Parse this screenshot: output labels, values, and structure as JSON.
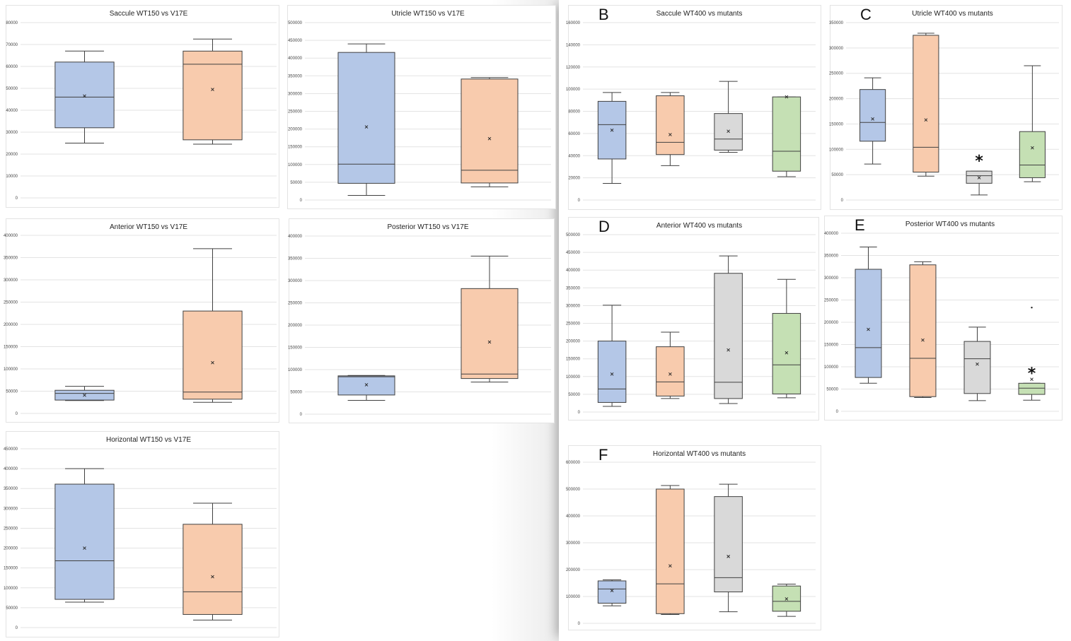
{
  "colors": {
    "wt": "#b4c7e7",
    "v17e": "#f8cbad",
    "mutant3": "#d9d9d9",
    "mutant4": "#c5e0b4",
    "stroke": "#404040"
  },
  "chart_data": [
    {
      "id": "saccule-150",
      "type": "box",
      "title": "Saccule WT150 vs V17E",
      "letter": "",
      "ylim": [
        0,
        80000
      ],
      "yticks": [
        0,
        10000,
        20000,
        30000,
        40000,
        50000,
        60000,
        70000,
        80000
      ],
      "boxes": [
        {
          "min": 25000,
          "q1": 32000,
          "median": 46000,
          "q3": 62000,
          "max": 67000,
          "mean": 46500
        },
        {
          "min": 24500,
          "q1": 26500,
          "median": 61000,
          "q3": 67000,
          "max": 72500,
          "mean": 49500
        }
      ]
    },
    {
      "id": "utricle-150",
      "type": "box",
      "title": "Utricle WT150 vs V17E",
      "letter": "",
      "ylim": [
        0,
        500000
      ],
      "yticks": [
        0,
        50000,
        100000,
        150000,
        200000,
        250000,
        300000,
        350000,
        400000,
        450000,
        500000
      ],
      "boxes": [
        {
          "min": 13000,
          "q1": 47000,
          "median": 101000,
          "q3": 416000,
          "max": 440000,
          "mean": 206000
        },
        {
          "min": 37000,
          "q1": 48000,
          "median": 84000,
          "q3": 341000,
          "max": 345000,
          "mean": 173000
        }
      ]
    },
    {
      "id": "anterior-150",
      "type": "box",
      "title": "Anterior WT150 vs V17E",
      "letter": "",
      "ylim": [
        0,
        400000
      ],
      "yticks": [
        0,
        50000,
        100000,
        150000,
        200000,
        250000,
        300000,
        350000,
        400000
      ],
      "boxes": [
        {
          "min": 29000,
          "q1": 30000,
          "median": 45000,
          "q3": 52000,
          "max": 61000,
          "mean": 41000
        },
        {
          "min": 25000,
          "q1": 32000,
          "median": 48000,
          "q3": 230000,
          "max": 370000,
          "mean": 114000
        }
      ]
    },
    {
      "id": "posterior-150",
      "type": "box",
      "title": "Posterior WT150 vs V17E",
      "letter": "",
      "ylim": [
        0,
        400000
      ],
      "yticks": [
        0,
        50000,
        100000,
        150000,
        200000,
        250000,
        300000,
        350000,
        400000
      ],
      "boxes": [
        {
          "min": 31000,
          "q1": 43000,
          "median": 84000,
          "q3": 86000,
          "max": 87000,
          "mean": 66000
        },
        {
          "min": 72000,
          "q1": 80000,
          "median": 90000,
          "q3": 282000,
          "max": 355000,
          "mean": 162000
        }
      ]
    },
    {
      "id": "horizontal-150",
      "type": "box",
      "title": "Horizontal WT150 vs V17E",
      "letter": "",
      "ylim": [
        0,
        450000
      ],
      "yticks": [
        0,
        50000,
        100000,
        150000,
        200000,
        250000,
        300000,
        350000,
        400000,
        450000
      ],
      "boxes": [
        {
          "min": 64000,
          "q1": 71000,
          "median": 168000,
          "q3": 361000,
          "max": 400000,
          "mean": 200000
        },
        {
          "min": 19000,
          "q1": 33000,
          "median": 90000,
          "q3": 260000,
          "max": 313000,
          "mean": 128000
        }
      ]
    },
    {
      "id": "saccule-400",
      "type": "box",
      "title": "Saccule WT400 vs mutants",
      "letter": "B",
      "ylim": [
        0,
        160000
      ],
      "yticks": [
        0,
        20000,
        40000,
        60000,
        80000,
        100000,
        120000,
        140000,
        160000
      ],
      "boxes": [
        {
          "min": 15000,
          "q1": 37000,
          "median": 68000,
          "q3": 89000,
          "max": 97000,
          "mean": 63000
        },
        {
          "min": 31000,
          "q1": 41000,
          "median": 52000,
          "q3": 94000,
          "max": 97000,
          "mean": 59000
        },
        {
          "min": 43000,
          "q1": 45000,
          "median": 55000,
          "q3": 78000,
          "max": 107000,
          "mean": 62000
        },
        {
          "min": 21000,
          "q1": 26000,
          "median": 44000,
          "q3": 93000,
          "max": 93000,
          "mean": 93000
        }
      ]
    },
    {
      "id": "utricle-400",
      "type": "box",
      "title": "Utricle WT400 vs mutants",
      "letter": "C",
      "ylim": [
        0,
        350000
      ],
      "yticks": [
        0,
        50000,
        100000,
        150000,
        200000,
        250000,
        300000,
        350000
      ],
      "star_label": "*",
      "star_box": 2,
      "boxes": [
        {
          "min": 71000,
          "q1": 116000,
          "median": 153000,
          "q3": 218000,
          "max": 241000,
          "mean": 160000
        },
        {
          "min": 47000,
          "q1": 55000,
          "median": 104000,
          "q3": 325000,
          "max": 329000,
          "mean": 158000
        },
        {
          "min": 10000,
          "q1": 33000,
          "median": 48000,
          "q3": 57000,
          "max": 57000,
          "mean": 44000
        },
        {
          "min": 36000,
          "q1": 44000,
          "median": 69000,
          "q3": 135000,
          "max": 265000,
          "mean": 103000
        }
      ]
    },
    {
      "id": "anterior-400",
      "type": "box",
      "title": "Anterior WT400 vs mutants",
      "letter": "D",
      "ylim": [
        0,
        500000
      ],
      "yticks": [
        0,
        50000,
        100000,
        150000,
        200000,
        250000,
        300000,
        350000,
        400000,
        450000,
        500000
      ],
      "boxes": [
        {
          "min": 16000,
          "q1": 27000,
          "median": 65000,
          "q3": 200000,
          "max": 301000,
          "mean": 107000
        },
        {
          "min": 38000,
          "q1": 45000,
          "median": 85000,
          "q3": 184000,
          "max": 225000,
          "mean": 107000
        },
        {
          "min": 24000,
          "q1": 38000,
          "median": 84000,
          "q3": 391000,
          "max": 440000,
          "mean": 175000
        },
        {
          "min": 40000,
          "q1": 51000,
          "median": 133000,
          "q3": 278000,
          "max": 374000,
          "mean": 167000
        }
      ]
    },
    {
      "id": "posterior-400",
      "type": "box",
      "title": "Posterior WT400 vs mutants",
      "letter": "E",
      "ylim": [
        0,
        400000
      ],
      "yticks": [
        0,
        50000,
        100000,
        150000,
        200000,
        250000,
        300000,
        350000,
        400000
      ],
      "star_label": "*",
      "star_box": 3,
      "boxes": [
        {
          "min": 63000,
          "q1": 76000,
          "median": 143000,
          "q3": 319000,
          "max": 369000,
          "mean": 184000
        },
        {
          "min": 31000,
          "q1": 33000,
          "median": 119000,
          "q3": 329000,
          "max": 336000,
          "mean": 160000
        },
        {
          "min": 24000,
          "q1": 40000,
          "median": 118000,
          "q3": 157000,
          "max": 189000,
          "mean": 106000
        },
        {
          "min": 25000,
          "q1": 38000,
          "median": 52000,
          "q3": 63000,
          "max": 63000,
          "mean": 72000,
          "outlier": 233000
        }
      ]
    },
    {
      "id": "horizontal-400",
      "type": "box",
      "title": "Horizontal WT400 vs mutants",
      "letter": "F",
      "ylim": [
        0,
        600000
      ],
      "yticks": [
        0,
        100000,
        200000,
        300000,
        400000,
        500000,
        600000
      ],
      "boxes": [
        {
          "min": 65000,
          "q1": 75000,
          "median": 128000,
          "q3": 158000,
          "max": 162000,
          "mean": 122000
        },
        {
          "min": 33000,
          "q1": 36000,
          "median": 147000,
          "q3": 500000,
          "max": 513000,
          "mean": 214000
        },
        {
          "min": 43000,
          "q1": 117000,
          "median": 170000,
          "q3": 472000,
          "max": 518000,
          "mean": 249000
        },
        {
          "min": 26000,
          "q1": 45000,
          "median": 82000,
          "q3": 139000,
          "max": 146000,
          "mean": 91000
        }
      ]
    }
  ]
}
